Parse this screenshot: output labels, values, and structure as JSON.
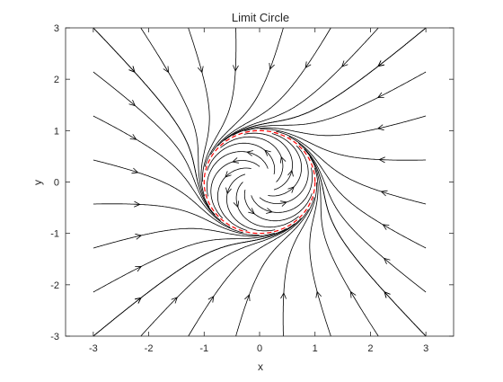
{
  "chart_data": {
    "type": "phase-portrait",
    "title": "Limit Circle",
    "xlabel": "x",
    "ylabel": "y",
    "xlim": [
      -3.5,
      3.5
    ],
    "ylim": [
      -3,
      3
    ],
    "xticks": [
      -3,
      -2,
      -1,
      0,
      1,
      2,
      3
    ],
    "yticks": [
      -3,
      -2,
      -1,
      0,
      1,
      2,
      3
    ],
    "grid": false,
    "limit_cycle": {
      "radius": 1,
      "color": "#ff0000",
      "style": "dashed"
    },
    "streamline_color": "#000000"
  }
}
